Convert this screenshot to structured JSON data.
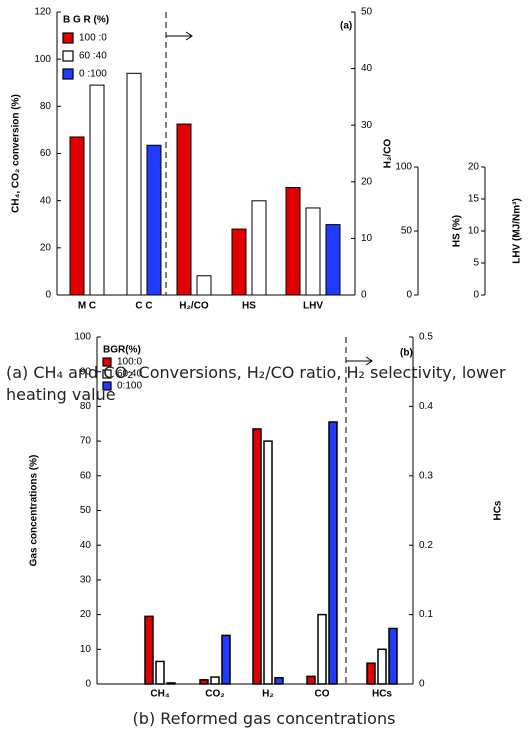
{
  "chart_data": [
    {
      "type": "bar",
      "annotation": "(a)",
      "caption": "(a) CH₄ and CO₂ Conversions, H₂/CO ratio, H₂ selectivity, lower heating value",
      "legend_title": "B G R (%)",
      "legend": "upper left",
      "categories": [
        "M C",
        "C C",
        "H₂/CO",
        "HS",
        "LHV"
      ],
      "category_axes": [
        "y",
        "y",
        "y2",
        "y3",
        "y4"
      ],
      "series": [
        {
          "name": "100 :0",
          "color": "#e00000",
          "values": [
            67,
            null,
            30.2,
            51.5,
            16.8
          ]
        },
        {
          "name": "60 :40",
          "color": "#ffffff",
          "values": [
            89,
            94,
            3.4,
            73.6,
            13.6
          ]
        },
        {
          "name": "0 :100",
          "color": "#1f3cff",
          "values": [
            null,
            63.5,
            null,
            null,
            11.0
          ]
        }
      ],
      "ylabel": "CH₄, CO₂ conversion (%)",
      "ylim": [
        0,
        120
      ],
      "yticks": [
        0,
        20,
        40,
        60,
        80,
        100,
        120
      ],
      "y2label": "H₂/CO",
      "y2lim": [
        0,
        50
      ],
      "y2ticks": [
        0,
        10,
        20,
        30,
        40,
        50
      ],
      "y3label": "HS (%)",
      "y3lim": [
        0,
        100
      ],
      "y3ticks": [
        0,
        50,
        100
      ],
      "y4label": "LHV (MJ/Nm³)",
      "y4lim": [
        0,
        20
      ],
      "y4ticks": [
        0,
        5,
        10,
        15,
        20
      ]
    },
    {
      "type": "bar",
      "annotation": "(b)",
      "caption": "(b) Reformed gas concentrations",
      "legend_title": "BGR(%)",
      "legend": "upper left",
      "categories": [
        "CH₄",
        "CO₂",
        "H₂",
        "CO",
        "HCs"
      ],
      "category_axes": [
        "y",
        "y",
        "y",
        "y",
        "y2"
      ],
      "series": [
        {
          "name": "100:0",
          "color": "#e00000",
          "values": [
            19.5,
            1.2,
            73.5,
            2.2,
            0.03
          ]
        },
        {
          "name": "60:40",
          "color": "#ffffff",
          "values": [
            6.5,
            2,
            70,
            20,
            0.05
          ]
        },
        {
          "name": "0:100",
          "color": "#1f3cff",
          "values": [
            0.3,
            14,
            1.8,
            75.5,
            0.08
          ]
        }
      ],
      "ylabel": "Gas concentrations (%)",
      "ylim": [
        0,
        100
      ],
      "yticks": [
        0,
        10,
        20,
        30,
        40,
        50,
        60,
        70,
        80,
        90,
        100
      ],
      "y2label": "HCs",
      "y2lim": [
        0,
        0.5
      ],
      "y2ticks": [
        0,
        0.1,
        0.2,
        0.3,
        0.4,
        0.5
      ]
    }
  ]
}
